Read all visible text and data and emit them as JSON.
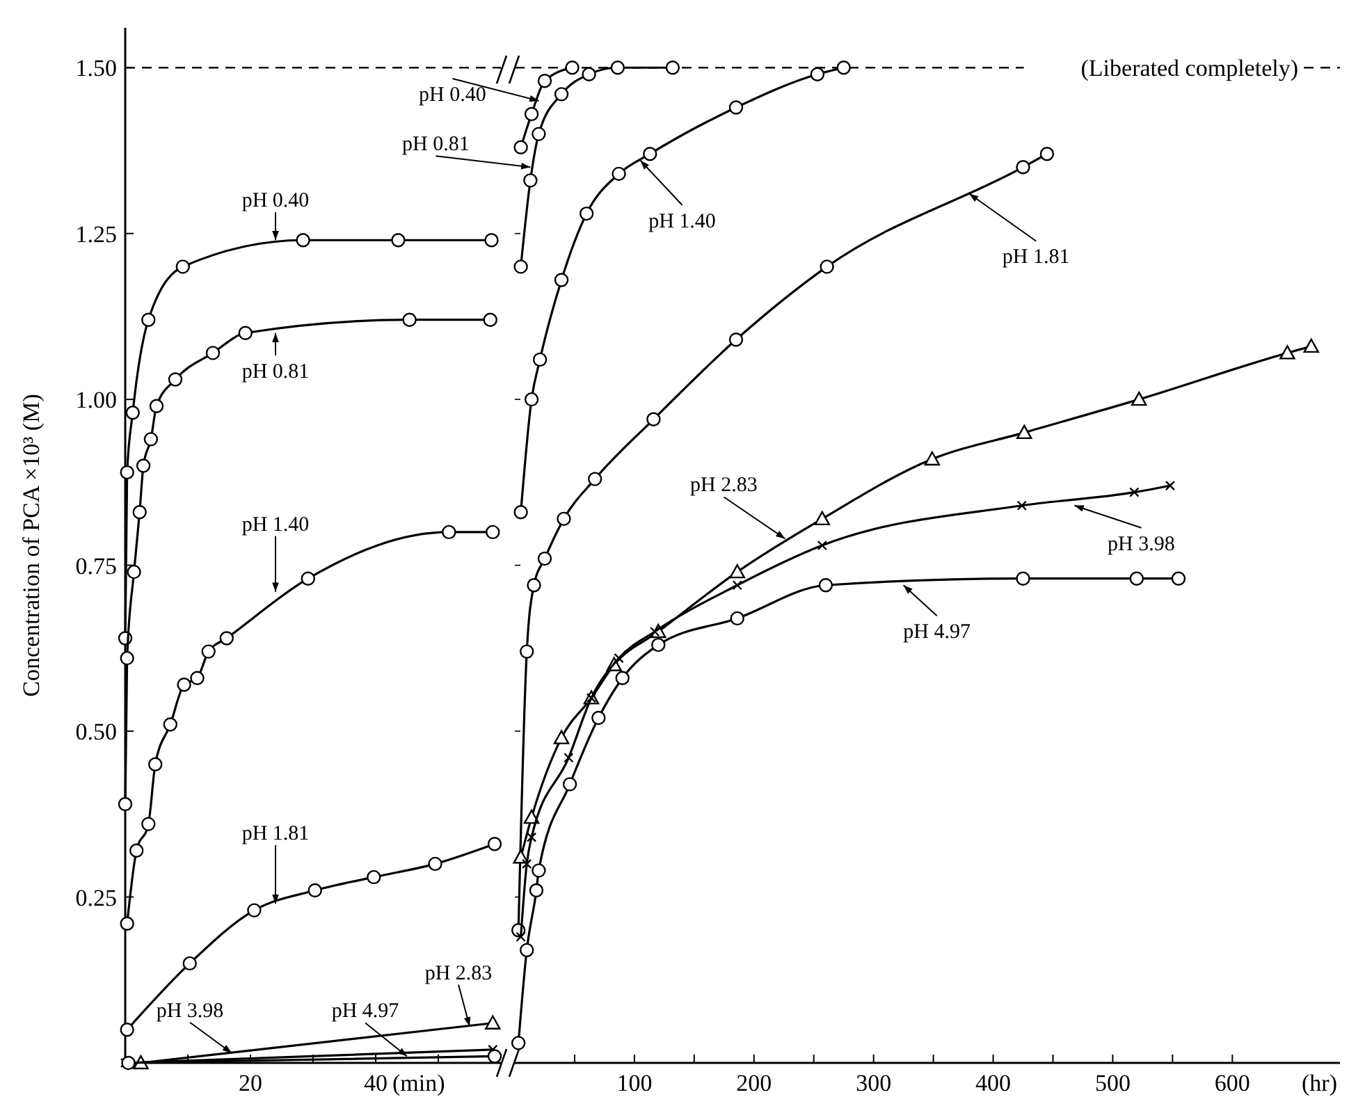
{
  "chart_data": [
    {
      "type": "line",
      "xlabel": "(min)",
      "ylabel": "Concentration of PCA ×10³ (M)",
      "xlim": [
        0,
        60
      ],
      "xticks": [
        {
          "value": 10,
          "label": null
        },
        20,
        {
          "value": 30,
          "label": null
        },
        40,
        {
          "value": 50,
          "label": null
        }
      ],
      "ylim": [
        0,
        1.56
      ],
      "yticks": [
        0.25,
        {
          "value": 0.5,
          "label": "0.50"
        },
        0.75,
        {
          "value": 1,
          "label": "1.00"
        },
        1.25,
        {
          "value": 1.5,
          "label": "1.50"
        }
      ],
      "line_style": "solid",
      "series": [
        {
          "color": "#000000",
          "marker": "circle",
          "x": [
            0,
            0.3,
            1.2,
            3.7,
            9.2,
            28.4,
            43.6,
            58.5
          ],
          "values": [
            0.64,
            0.89,
            0.98,
            1.12,
            1.2,
            1.24,
            1.24,
            1.24
          ]
        },
        {
          "color": "#000000",
          "marker": "circle",
          "x": [
            0,
            0.3,
            1.4,
            2.3,
            2.9,
            4.1,
            5,
            8,
            14,
            19.2,
            45.4,
            58.3
          ],
          "values": [
            0.39,
            0.61,
            0.74,
            0.83,
            0.9,
            0.94,
            0.99,
            1.03,
            1.07,
            1.1,
            1.12,
            1.12
          ]
        },
        {
          "color": "#000000",
          "marker": "circle",
          "x": [
            0.3,
            1.8,
            3.7,
            4.8,
            7.2,
            9.4,
            11.5,
            13.3,
            16.2,
            29.2,
            51.7,
            58.7
          ],
          "values": [
            0.21,
            0.32,
            0.36,
            0.45,
            0.51,
            0.57,
            0.58,
            0.62,
            0.64,
            0.73,
            0.8,
            0.8
          ]
        },
        {
          "color": "#000000",
          "marker": "circle",
          "x": [
            0.3,
            10.3,
            20.6,
            30.3,
            39.7,
            49.5,
            59
          ],
          "values": [
            0.05,
            0.15,
            0.23,
            0.26,
            0.28,
            0.3,
            0.33
          ]
        },
        {
          "color": "#000000",
          "marker": "triangle",
          "x": [
            2.5,
            58.7
          ],
          "values": [
            0,
            0.06
          ]
        },
        {
          "color": "#000000",
          "marker": "cross",
          "x": [
            0,
            58.7
          ],
          "values": [
            0,
            0.02
          ]
        },
        {
          "color": "#000000",
          "marker": "circle",
          "x": [
            0.5,
            59
          ],
          "values": [
            0,
            0.01
          ]
        }
      ],
      "ref_lines": [
        {
          "axis": "y",
          "value": 1.5,
          "line_style": "dashed"
        }
      ],
      "annotations": [
        {
          "text": "pH 0.40",
          "x": 24,
          "y": 1.24
        },
        {
          "text": "pH 0.81",
          "x": 24,
          "y": 1.1
        },
        {
          "text": "pH 1.40",
          "x": 24,
          "y": 0.71
        },
        {
          "text": "pH 1.81",
          "x": 24,
          "y": 0.24
        },
        {
          "text": "pH 2.83",
          "x": 55,
          "y": 0.055
        },
        {
          "text": "pH 3.98",
          "x": 17,
          "y": 0.015
        },
        {
          "text": "pH 4.97",
          "x": 45,
          "y": 0.01
        }
      ]
    },
    {
      "type": "line",
      "xlabel": "(hr)",
      "xlim": [
        0,
        690
      ],
      "xticks": [
        {
          "value": 50,
          "label": null
        },
        100,
        {
          "value": 150,
          "label": null
        },
        200,
        {
          "value": 250,
          "label": null
        },
        300,
        {
          "value": 350,
          "label": null
        },
        400,
        {
          "value": 450,
          "label": null
        },
        500,
        {
          "value": 550,
          "label": null
        },
        600
      ],
      "ylim": [
        0,
        1.5
      ],
      "yticks": [
        0.25,
        0.5,
        0.75,
        1,
        1.25,
        1.5
      ],
      "tick_labels": "x",
      "line_style": "solid",
      "series": [
        {
          "color": "#000000",
          "marker": "circle",
          "x": [
            5,
            14,
            25,
            48
          ],
          "values": [
            1.38,
            1.43,
            1.48,
            1.5
          ]
        },
        {
          "color": "#000000",
          "marker": "circle",
          "x": [
            5,
            13,
            20,
            39,
            62,
            86,
            132
          ],
          "values": [
            1.2,
            1.33,
            1.4,
            1.46,
            1.49,
            1.5,
            1.5
          ]
        },
        {
          "color": "#000000",
          "marker": "circle",
          "x": [
            5,
            14,
            21,
            39,
            60,
            87,
            113,
            185,
            253,
            275
          ],
          "values": [
            0.83,
            1,
            1.06,
            1.18,
            1.28,
            1.34,
            1.37,
            1.44,
            1.49,
            1.5
          ]
        },
        {
          "color": "#000000",
          "marker": "circle",
          "x": [
            3,
            10,
            16,
            25,
            41,
            67,
            116,
            185,
            261,
            425,
            445
          ],
          "values": [
            0.2,
            0.62,
            0.72,
            0.76,
            0.82,
            0.88,
            0.97,
            1.09,
            1.2,
            1.35,
            1.37
          ]
        },
        {
          "color": "#000000",
          "marker": "triangle",
          "x": [
            5,
            14,
            39,
            64,
            83,
            120,
            186,
            257,
            349,
            426,
            522,
            646,
            666
          ],
          "values": [
            0.31,
            0.37,
            0.49,
            0.55,
            0.6,
            0.65,
            0.74,
            0.82,
            0.91,
            0.95,
            1,
            1.07,
            1.08
          ]
        },
        {
          "color": "#000000",
          "marker": "cross",
          "x": [
            5,
            10,
            14,
            45,
            64,
            87,
            117,
            186,
            257,
            424,
            518,
            548
          ],
          "values": [
            0.19,
            0.3,
            0.34,
            0.46,
            0.55,
            0.61,
            0.65,
            0.72,
            0.78,
            0.84,
            0.86,
            0.87
          ]
        },
        {
          "color": "#000000",
          "marker": "circle",
          "x": [
            3,
            10,
            18,
            20,
            46,
            70,
            90,
            120,
            186,
            260,
            425,
            520,
            555
          ],
          "values": [
            0.03,
            0.17,
            0.26,
            0.29,
            0.42,
            0.52,
            0.58,
            0.63,
            0.67,
            0.72,
            0.73,
            0.73,
            0.73
          ]
        }
      ],
      "ref_lines": [
        {
          "axis": "y",
          "value": 1.5,
          "label": "(Liberated completely)",
          "line_style": "dashed"
        }
      ],
      "annotations": [
        {
          "text": "pH 0.40",
          "x": 20,
          "y": 1.45
        },
        {
          "text": "pH 0.81",
          "x": 13,
          "y": 1.35
        },
        {
          "text": "pH 1.40",
          "x": 105,
          "y": 1.36
        },
        {
          "text": "pH 1.81",
          "x": 380,
          "y": 1.31
        },
        {
          "text": "pH 2.83",
          "x": 226,
          "y": 0.79
        },
        {
          "text": "pH 3.98",
          "x": 468,
          "y": 0.84
        },
        {
          "text": "pH 4.97",
          "x": 325,
          "y": 0.72
        }
      ]
    }
  ]
}
